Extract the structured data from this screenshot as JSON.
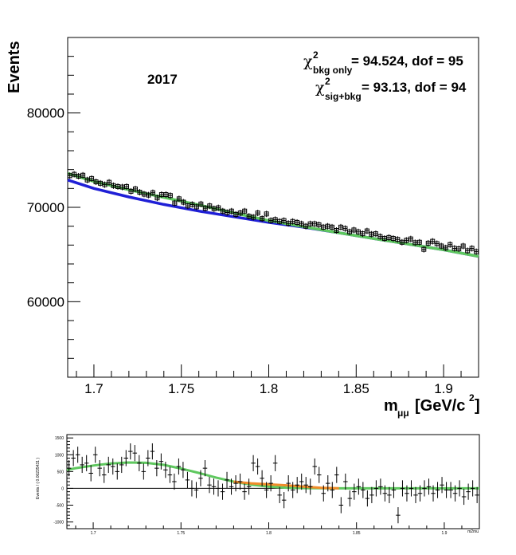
{
  "chart_data": [
    {
      "type": "scatter",
      "panel": "main",
      "xlabel": "m",
      "xlabel_sub": "μμ",
      "xlabel_units": "[GeV/c",
      "xlabel_units_sup": "2",
      "xlabel_units_close": "]",
      "ylabel": "Events",
      "xlim": [
        1.685,
        1.92
      ],
      "ylim": [
        52000,
        88000
      ],
      "x_ticks": [
        1.7,
        1.75,
        1.8,
        1.85,
        1.9
      ],
      "x_tick_labels": [
        "1.7",
        "1.75",
        "1.8",
        "1.85",
        "1.9"
      ],
      "y_ticks": [
        60000,
        70000,
        80000
      ],
      "y_tick_labels": [
        "60000",
        "70000",
        "80000"
      ],
      "annotation_year": "2017",
      "chi2": {
        "symbol": "χ",
        "sup": "2",
        "bkg_sub": "bkg only",
        "bkg_text": " = 94.524, dof = 95",
        "sig_sub": "sig+bkg",
        "sig_text": " = 93.13, dof = 94"
      },
      "colors": {
        "data": "#000000",
        "bkg_fit": "#1f1fd6",
        "sig_bkg_fit": "#5fc85f"
      },
      "series": [
        {
          "kind": "points",
          "x": [
            1.6862,
            1.6887,
            1.6912,
            1.6937,
            1.6962,
            1.6987,
            1.7012,
            1.7037,
            1.7062,
            1.7087,
            1.7112,
            1.7137,
            1.7162,
            1.7187,
            1.7212,
            1.7237,
            1.7262,
            1.7287,
            1.7312,
            1.7337,
            1.7362,
            1.7387,
            1.7412,
            1.7437,
            1.7462,
            1.7487,
            1.7512,
            1.7537,
            1.7562,
            1.7587,
            1.7612,
            1.7637,
            1.7662,
            1.7687,
            1.7712,
            1.7737,
            1.7762,
            1.7787,
            1.7812,
            1.7837,
            1.7862,
            1.7887,
            1.7912,
            1.7937,
            1.7962,
            1.7987,
            1.8012,
            1.8037,
            1.8062,
            1.8087,
            1.8112,
            1.8137,
            1.8162,
            1.8187,
            1.8212,
            1.8237,
            1.8262,
            1.8287,
            1.8312,
            1.8337,
            1.8362,
            1.8387,
            1.8412,
            1.8437,
            1.8462,
            1.8487,
            1.8512,
            1.8537,
            1.8562,
            1.8587,
            1.8612,
            1.8637,
            1.8662,
            1.8687,
            1.8712,
            1.8737,
            1.8762,
            1.8787,
            1.8812,
            1.8837,
            1.8862,
            1.8887,
            1.8912,
            1.8937,
            1.8962,
            1.8987,
            1.9012,
            1.9037,
            1.9062,
            1.9087,
            1.9112,
            1.9137,
            1.9162,
            1.9187
          ],
          "y": [
            73350,
            73500,
            73300,
            73400,
            72900,
            73050,
            72700,
            72550,
            72400,
            72650,
            72300,
            72200,
            72150,
            72200,
            71700,
            71950,
            71600,
            71400,
            71300,
            71550,
            71000,
            71350,
            71350,
            71250,
            70450,
            70900,
            70550,
            70150,
            70300,
            70050,
            70350,
            69900,
            70150,
            69850,
            69950,
            69600,
            69450,
            69600,
            69250,
            69400,
            69600,
            69050,
            68950,
            69400,
            68800,
            69300,
            68600,
            68700,
            68500,
            68600,
            68300,
            68500,
            68400,
            68250,
            68000,
            68250,
            68250,
            68150,
            67900,
            68000,
            67900,
            67550,
            67900,
            67750,
            67400,
            67600,
            67400,
            67200,
            67500,
            67150,
            67200,
            66900,
            66700,
            66800,
            66700,
            66600,
            66300,
            66500,
            66650,
            66250,
            66300,
            65550,
            66200,
            66400,
            66150,
            65900,
            65700,
            66050,
            65650,
            65600,
            65900,
            65400,
            65650,
            65300
          ]
        },
        {
          "kind": "line",
          "name": "bkg",
          "x": [
            1.685,
            1.7,
            1.72,
            1.74,
            1.76,
            1.78,
            1.8,
            1.82,
            1.84,
            1.86,
            1.88,
            1.9,
            1.92
          ],
          "y": [
            72900,
            72000,
            71100,
            70300,
            69600,
            69000,
            68400,
            67900,
            67300,
            66700,
            66100,
            65500,
            64800
          ]
        },
        {
          "kind": "line",
          "name": "sig+bkg",
          "x": [
            1.685,
            1.7,
            1.72,
            1.74,
            1.76,
            1.78,
            1.8,
            1.82,
            1.84,
            1.86,
            1.88,
            1.9,
            1.92
          ],
          "y": [
            73600,
            72750,
            71850,
            71050,
            70250,
            69400,
            68600,
            67950,
            67300,
            66700,
            66100,
            65500,
            64800
          ]
        }
      ]
    },
    {
      "type": "scatter",
      "panel": "residual",
      "ylabel": "Events / ( 0.00235431 )",
      "xlabel": "m2mu",
      "xlim": [
        1.685,
        1.92
      ],
      "ylim": [
        -1200,
        1600
      ],
      "x_ticks": [
        1.7,
        1.75,
        1.8,
        1.85,
        1.9
      ],
      "x_tick_labels": [
        "1.7",
        "1.75",
        "1.8",
        "1.85",
        "1.9"
      ],
      "y_ticks": [
        -1000,
        -500,
        0,
        500,
        1000,
        1500
      ],
      "y_tick_labels": [
        "-1000",
        "-500",
        "0",
        "500",
        "1000",
        "1500"
      ],
      "colors": {
        "data": "#000000",
        "zero_line": "#000000",
        "signal": "#5fc85f",
        "alt_signal": "#f08c2a"
      },
      "series": [
        {
          "kind": "points",
          "x": [
            1.6862,
            1.6887,
            1.6912,
            1.6937,
            1.6962,
            1.6987,
            1.7012,
            1.7037,
            1.7062,
            1.7087,
            1.7112,
            1.7137,
            1.7162,
            1.7187,
            1.7212,
            1.7237,
            1.7262,
            1.7287,
            1.7312,
            1.7337,
            1.7362,
            1.7387,
            1.7412,
            1.7437,
            1.7462,
            1.7487,
            1.7512,
            1.7537,
            1.7562,
            1.7587,
            1.7612,
            1.7637,
            1.7662,
            1.7687,
            1.7712,
            1.7737,
            1.7762,
            1.7787,
            1.7812,
            1.7837,
            1.7862,
            1.7887,
            1.7912,
            1.7937,
            1.7962,
            1.7987,
            1.8012,
            1.8037,
            1.8062,
            1.8087,
            1.8112,
            1.8137,
            1.8162,
            1.8187,
            1.8212,
            1.8237,
            1.8262,
            1.8287,
            1.8312,
            1.8337,
            1.8362,
            1.8387,
            1.8412,
            1.8437,
            1.8462,
            1.8487,
            1.8512,
            1.8537,
            1.8562,
            1.8587,
            1.8612,
            1.8637,
            1.8662,
            1.8687,
            1.8712,
            1.8737,
            1.8762,
            1.8787,
            1.8812,
            1.8837,
            1.8862,
            1.8887,
            1.8912,
            1.8937,
            1.8962,
            1.8987,
            1.9012,
            1.9037,
            1.9062,
            1.9087,
            1.9112,
            1.9137,
            1.9162,
            1.9187
          ],
          "y": [
            600,
            900,
            1000,
            700,
            750,
            450,
            1000,
            600,
            400,
            700,
            650,
            500,
            700,
            900,
            1100,
            1050,
            750,
            500,
            900,
            1100,
            600,
            800,
            550,
            400,
            200,
            650,
            550,
            250,
            0,
            -50,
            300,
            600,
            100,
            50,
            0,
            -100,
            250,
            50,
            150,
            200,
            -100,
            50,
            750,
            650,
            300,
            -50,
            150,
            750,
            -200,
            -350,
            150,
            -50,
            100,
            200,
            100,
            50,
            650,
            400,
            -150,
            150,
            -50,
            400,
            -500,
            200,
            -300,
            -100,
            50,
            -50,
            -300,
            -200,
            0,
            50,
            -150,
            -200,
            -50,
            -800,
            0,
            -150,
            0,
            -200,
            -150,
            0,
            50,
            -150,
            -50,
            100,
            -50,
            -50,
            -150,
            0,
            -250,
            -100,
            0,
            -200
          ]
        },
        {
          "kind": "line",
          "name": "signal",
          "x": [
            1.685,
            1.69,
            1.7,
            1.71,
            1.72,
            1.73,
            1.74,
            1.75,
            1.76,
            1.77,
            1.78,
            1.79,
            1.8,
            1.81,
            1.82,
            1.83,
            1.84,
            1.86,
            1.88,
            1.9,
            1.92
          ],
          "y": [
            550,
            600,
            680,
            740,
            770,
            760,
            700,
            590,
            460,
            320,
            200,
            110,
            50,
            20,
            8,
            3,
            0,
            0,
            0,
            0,
            0
          ]
        },
        {
          "kind": "line",
          "name": "alt_signal",
          "x": [
            1.78,
            1.79,
            1.8,
            1.81,
            1.82,
            1.83,
            1.84
          ],
          "y": [
            200,
            150,
            120,
            90,
            50,
            15,
            0
          ]
        }
      ]
    }
  ]
}
